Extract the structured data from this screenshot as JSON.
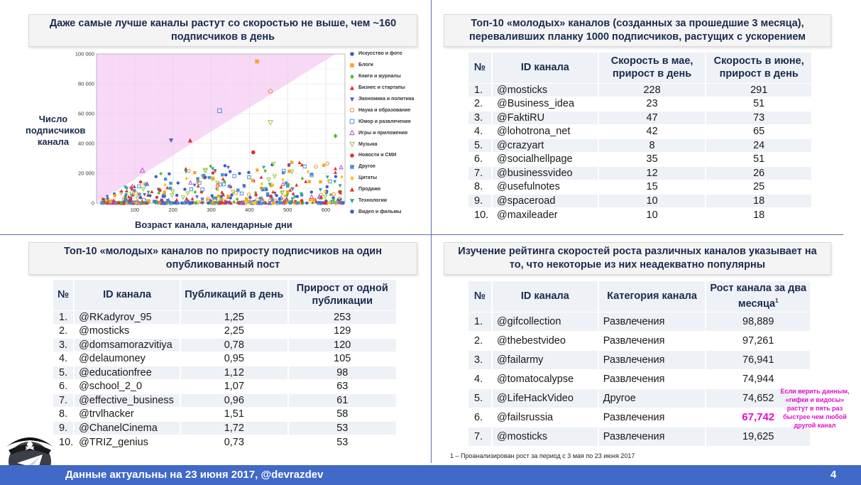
{
  "chart": {
    "title": "Даже самые лучше каналы растут со скоростью не выше, чем ~160 подписчиков в день",
    "ylabel": "Число подписчиков канала",
    "xlabel": "Возраст канала, календарные дни"
  },
  "chart_data": {
    "type": "scatter",
    "title": "Даже самые лучше каналы растут со скоростью не выше, чем ~160 подписчиков в день",
    "xlabel": "Возраст канала, календарные дни",
    "ylabel": "Число подписчиков канала",
    "xlim": [
      0,
      650
    ],
    "ylim": [
      0,
      100000
    ],
    "xticks": [
      "100",
      "200",
      "300",
      "400",
      "500",
      "600"
    ],
    "yticks": [
      "0",
      "20 000",
      "40 000",
      "60 000",
      "80 000",
      "100 000"
    ],
    "grid": true,
    "shaded_region": "y > 160 * x",
    "series": [
      {
        "name": "Искусство и фото",
        "color": "#3b5fc4",
        "marker": "circle-filled"
      },
      {
        "name": "Блоги",
        "color": "#f5a623",
        "marker": "square"
      },
      {
        "name": "Книги и журналы",
        "color": "#5bb52c",
        "marker": "diamond"
      },
      {
        "name": "Бизнес и стартапы",
        "color": "#e0312c",
        "marker": "triangle-up"
      },
      {
        "name": "Экономика и политика",
        "color": "#5a5fb8",
        "marker": "triangle-down"
      },
      {
        "name": "Наука и образование",
        "color": "#f08a3a",
        "marker": "circle-open"
      },
      {
        "name": "Юмор и развлечения",
        "color": "#4c8fd6",
        "marker": "square-open"
      },
      {
        "name": "Игры и приложения",
        "color": "#b553c8",
        "marker": "triangle-up-open"
      },
      {
        "name": "Музыка",
        "color": "#9bc53d",
        "marker": "triangle-down-open"
      },
      {
        "name": "Новости и СМИ",
        "color": "#e0312c",
        "marker": "circle-filled"
      },
      {
        "name": "Другое",
        "color": "#4c8fd6",
        "marker": "square"
      },
      {
        "name": "Цитаты",
        "color": "#f5c518",
        "marker": "diamond"
      },
      {
        "name": "Продажи",
        "color": "#e0312c",
        "marker": "triangle-up"
      },
      {
        "name": "Технологии",
        "color": "#22a88f",
        "marker": "triangle-down"
      },
      {
        "name": "Видео и фильмы",
        "color": "#3b5fc4",
        "marker": "circle-filled"
      }
    ],
    "highlighted_points": [
      {
        "x": 120,
        "y": 22000,
        "series": "Игры и приложения"
      },
      {
        "x": 195,
        "y": 42000,
        "series": "Экономика и политика"
      },
      {
        "x": 245,
        "y": 42000,
        "series": "Бизнес и стартапы"
      },
      {
        "x": 285,
        "y": 22000,
        "series": "Музыка"
      },
      {
        "x": 322,
        "y": 62000,
        "series": "Юмор и развлечения"
      },
      {
        "x": 410,
        "y": 34000,
        "series": "Новости и СМИ"
      },
      {
        "x": 420,
        "y": 95000,
        "series": "Блоги"
      },
      {
        "x": 455,
        "y": 75000,
        "series": "Наука и образование"
      },
      {
        "x": 455,
        "y": 54000,
        "series": "Музыка"
      },
      {
        "x": 625,
        "y": 45000,
        "series": "Книги и журналы"
      }
    ]
  },
  "legend": [
    "Искусство и фото",
    "Блоги",
    "Книги и журналы",
    "Бизнес и стартапы",
    "Экономика и политика",
    "Наука и образование",
    "Юмор и развлечения",
    "Игры и приложения",
    "Музыка",
    "Новости и СМИ",
    "Другое",
    "Цитаты",
    "Продажи",
    "Технологии",
    "Видео и фильмы"
  ],
  "table1": {
    "title": "Топ-10 «молодых» каналов (созданных за прошедшие 3 месяца), переваливших планку 1000 подписчиков, растущих с ускорением",
    "headers": [
      "№",
      "ID канала",
      "Скорость в мае, прирост в день",
      "Скорость в июне, прирост в день"
    ],
    "rows": [
      [
        "1.",
        "@mosticks",
        "228",
        "291"
      ],
      [
        "2.",
        "@Business_idea",
        "23",
        "51"
      ],
      [
        "3.",
        "@FaktiRU",
        "47",
        "73"
      ],
      [
        "4.",
        "@lohotrona_net",
        "42",
        "65"
      ],
      [
        "5.",
        "@crazyart",
        "8",
        "24"
      ],
      [
        "6.",
        "@socialhellpage",
        "35",
        "51"
      ],
      [
        "7.",
        "@businessvideo",
        "12",
        "26"
      ],
      [
        "8.",
        "@usefulnotes",
        "15",
        "25"
      ],
      [
        "9.",
        "@spaceroad",
        "10",
        "18"
      ],
      [
        "10.",
        "@maxileader",
        "10",
        "18"
      ]
    ]
  },
  "table2": {
    "title": "Топ-10 «молодых» каналов по приросту подписчиков на один опубликованный пост",
    "headers": [
      "№",
      "ID канала",
      "Публикаций в день",
      "Прирост от одной публикации"
    ],
    "rows": [
      [
        "1.",
        "@RKadyrov_95",
        "1,25",
        "253"
      ],
      [
        "2.",
        "@mosticks",
        "2,25",
        "129"
      ],
      [
        "3.",
        "@domsamorazvitiya",
        "0,78",
        "120"
      ],
      [
        "4.",
        "@delaumoney",
        "0,95",
        "105"
      ],
      [
        "5.",
        "@educationfree",
        "1,12",
        "98"
      ],
      [
        "6.",
        "@school_2_0",
        "1,07",
        "63"
      ],
      [
        "7.",
        "@effective_business",
        "0,96",
        "61"
      ],
      [
        "8.",
        "@trvlhacker",
        "1,51",
        "58"
      ],
      [
        "9.",
        "@ChanelCinema",
        "1,72",
        "53"
      ],
      [
        "10.",
        "@TRIZ_genius",
        "0,73",
        "53"
      ]
    ]
  },
  "table3": {
    "title": "Изучение рейтинга скоростей роста различных каналов указывает на то, что некоторые из них неадекватно популярны",
    "headers": [
      "№",
      "ID канала",
      "Категория канала",
      "Рост канала за два месяца",
      "1"
    ],
    "rows": [
      [
        "1.",
        "@gifcollection",
        "Развлечения",
        "98,889"
      ],
      [
        "2.",
        "@thebestvideo",
        "Развлечения",
        "97,261"
      ],
      [
        "3.",
        "@failarmy",
        "Развлечения",
        "76,941"
      ],
      [
        "4.",
        "@tomatocalypse",
        "Развлечения",
        "74,944"
      ],
      [
        "5.",
        "@LifeHackVideo",
        "Другое",
        "74,652"
      ],
      [
        "6.",
        "@failsrussia",
        "Развлечения",
        "67,742"
      ],
      [
        "7.",
        "@mosticks",
        "Развлечения",
        "19,625"
      ]
    ],
    "note": "Если верить данным, «гифки и видосы» растут в пять раз быстрее чем любой другой канал",
    "footnote": "1 – Проанализирован рост за период с 3 мая по 23 июня 2017"
  },
  "footer": {
    "text": "Данные актуальны на 23 июня 2017, @devrazdev",
    "page": "4"
  },
  "colors": {
    "accent": "#4169c8",
    "title_text": "#1a2b4c",
    "highlight": "#e011c8",
    "shade": "#f8d8f6"
  }
}
